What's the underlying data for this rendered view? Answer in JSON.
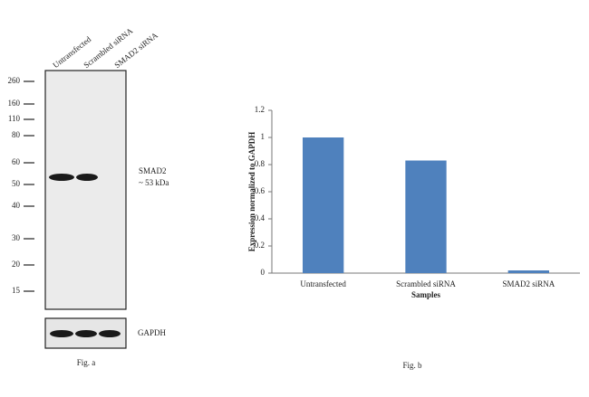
{
  "chart_data": {
    "type": "bar",
    "title": "Fig. b",
    "xlabel": "Samples",
    "ylabel": "Expression  normalized to GAPDH",
    "categories": [
      "Untransfected",
      "Scrambled siRNA",
      "SMAD2 siRNA"
    ],
    "values": [
      1.0,
      0.83,
      0.02
    ],
    "color": "#4f81bd",
    "ylim": [
      0,
      1.2
    ],
    "yticks": [
      0,
      0.2,
      0.4,
      0.6,
      0.8,
      1,
      1.2
    ],
    "grid": false
  },
  "blot": {
    "caption": "Fig. a",
    "lanes": [
      "Untransfected",
      "Scrambled siRNA",
      "SMAD2 siRNA"
    ],
    "markers": [
      "260",
      "160",
      "110",
      "80",
      "60",
      "50",
      "40",
      "30",
      "20",
      "15"
    ],
    "band_label": "SMAD2",
    "band_size": "~ 53 kDa",
    "loading_control": "GAPDH"
  }
}
